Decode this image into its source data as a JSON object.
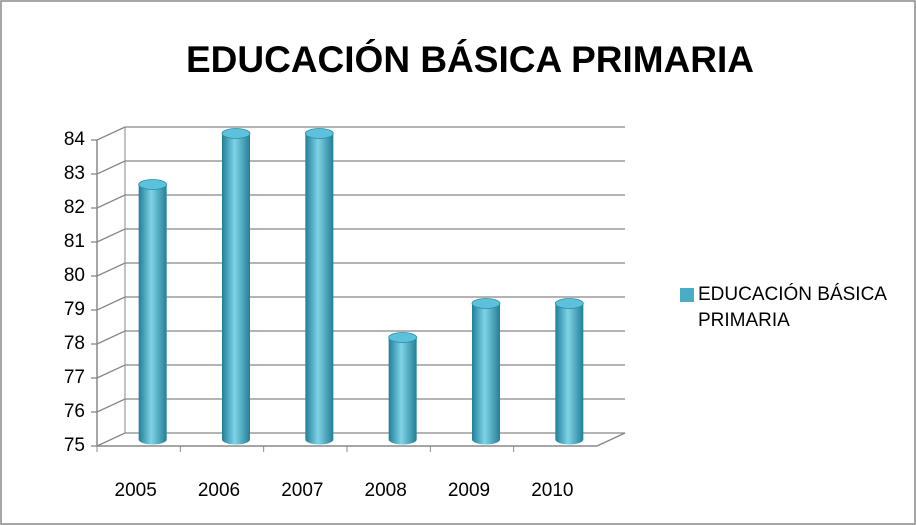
{
  "chart_data": {
    "type": "bar",
    "title": "EDUCACIÓN BÁSICA PRIMARIA",
    "categories": [
      "2005",
      "2006",
      "2007",
      "2008",
      "2009",
      "2010"
    ],
    "series": [
      {
        "name": "EDUCACIÓN BÁSICA PRIMARIA",
        "color": "#4bacc6",
        "values": [
          82.5,
          84,
          84,
          78,
          79,
          79
        ]
      }
    ],
    "ylim": [
      75,
      84
    ],
    "yticks": [
      75,
      76,
      77,
      78,
      79,
      80,
      81,
      82,
      83,
      84
    ],
    "grid": true,
    "legend": "right"
  }
}
